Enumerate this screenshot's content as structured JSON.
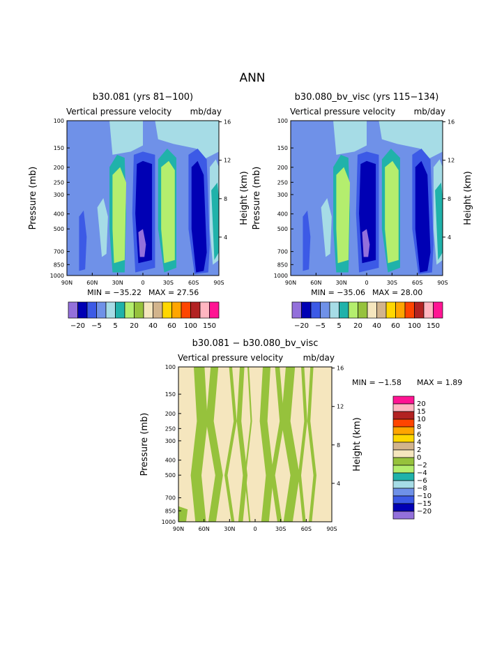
{
  "main_title": "ANN",
  "colors": {
    "purple": "#9370db",
    "navy": "#0000b4",
    "royal": "#3c5ae6",
    "cornflower": "#6f91e8",
    "lightblue": "#a6dce6",
    "teal": "#20b2aa",
    "lightgreen": "#b4ee6e",
    "olive": "#96c23c",
    "wheat": "#f5e6be",
    "tan": "#d2b48c",
    "gold": "#ffd700",
    "orange": "#ffa500",
    "orangered": "#ff4500",
    "firebrick": "#b22222",
    "pink": "#ffb6c1",
    "deeppink": "#ff1493"
  },
  "chart_data": [
    {
      "type": "contour",
      "title": "b30.081 (yrs 81−100)",
      "subtitle_left": "Vertical pressure velocity",
      "subtitle_right": "mb/day",
      "ylabel": "Pressure (mb)",
      "ylabel_right": "Height (km)",
      "x_ticks": [
        "90N",
        "60N",
        "30N",
        "0",
        "30S",
        "60S",
        "90S"
      ],
      "y_ticks": [
        "100",
        "150",
        "200",
        "250",
        "300",
        "400",
        "500",
        "700",
        "850",
        "1000"
      ],
      "y_right_ticks": [
        "16",
        "12",
        "8",
        "4"
      ],
      "xlim": [
        90,
        -90
      ],
      "ylim": [
        1000,
        100
      ],
      "log_y": true,
      "min_label": "MIN = −35.22",
      "max_label": "MAX =   27.56",
      "colorbar_labels": [
        "−20",
        "−5",
        "5",
        "20",
        "40",
        "60",
        "100",
        "150"
      ]
    },
    {
      "type": "contour",
      "title": "b30.080_bv_visc (yrs 115−134)",
      "subtitle_left": "Vertical pressure velocity",
      "subtitle_right": "mb/day",
      "ylabel": "Pressure (mb)",
      "ylabel_right": "Height (km)",
      "x_ticks": [
        "90N",
        "60N",
        "30N",
        "0",
        "30S",
        "60S",
        "90S"
      ],
      "y_ticks": [
        "100",
        "150",
        "200",
        "250",
        "300",
        "400",
        "500",
        "700",
        "850",
        "1000"
      ],
      "y_right_ticks": [
        "16",
        "12",
        "8",
        "4"
      ],
      "xlim": [
        90,
        -90
      ],
      "ylim": [
        1000,
        100
      ],
      "log_y": true,
      "min_label": "MIN = −35.06",
      "max_label": "MAX =   28.00",
      "colorbar_labels": [
        "−20",
        "−5",
        "5",
        "20",
        "40",
        "60",
        "100",
        "150"
      ]
    },
    {
      "type": "contour",
      "title": "b30.081 − b30.080_bv_visc",
      "subtitle_left": "Vertical pressure velocity",
      "subtitle_right": "mb/day",
      "ylabel": "Pressure (mb)",
      "ylabel_right": "Height (km)",
      "x_ticks": [
        "90N",
        "60N",
        "30N",
        "0",
        "30S",
        "60S",
        "90S"
      ],
      "y_ticks": [
        "100",
        "150",
        "200",
        "250",
        "300",
        "400",
        "500",
        "700",
        "850",
        "1000"
      ],
      "y_right_ticks": [
        "16",
        "12",
        "8",
        "4"
      ],
      "xlim": [
        90,
        -90
      ],
      "ylim": [
        1000,
        100
      ],
      "log_y": true,
      "min_label": "MIN =   −1.58",
      "max_label": "MAX =    1.89",
      "colorbar_labels": [
        "20",
        "15",
        "10",
        "8",
        "6",
        "4",
        "2",
        "0",
        "−2",
        "−4",
        "−6",
        "−8",
        "−10",
        "−15",
        "−20"
      ]
    }
  ]
}
